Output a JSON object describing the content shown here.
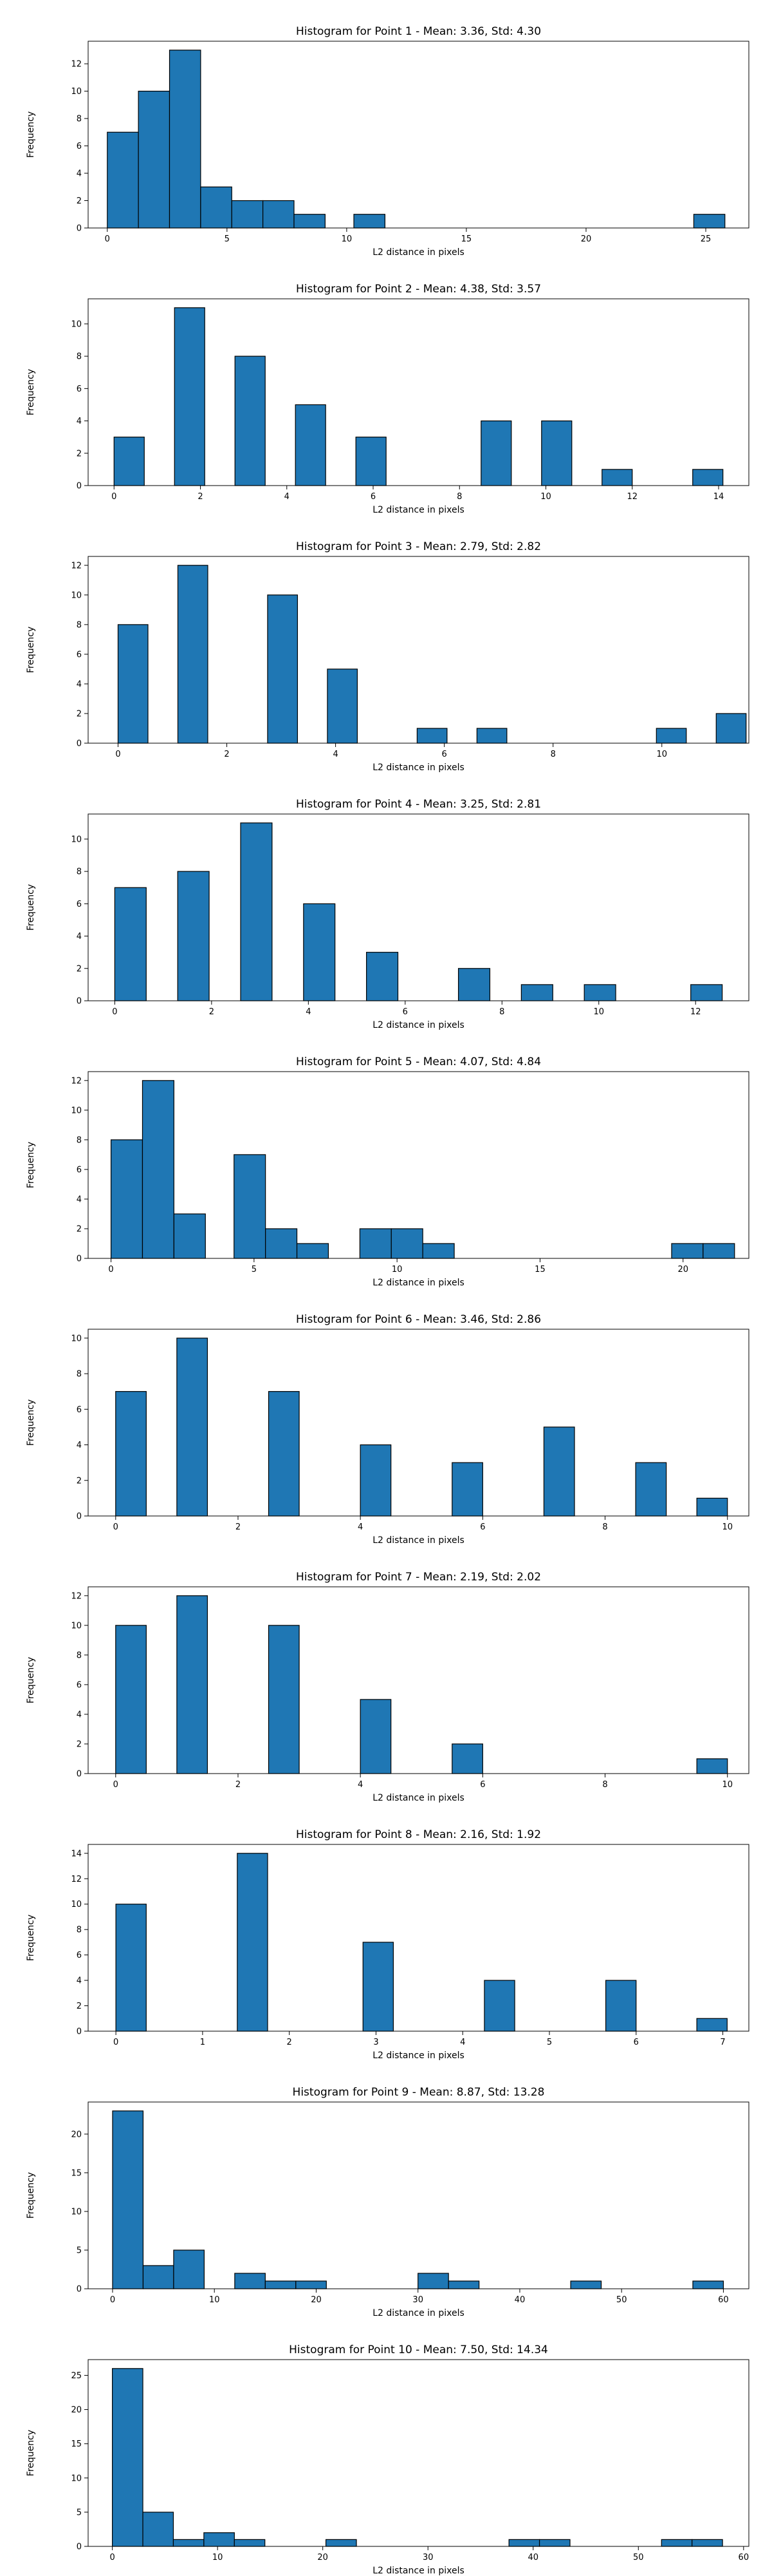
{
  "figure": {
    "bar_color": "#1f77b4",
    "edge_color": "#000000"
  },
  "chart_data": [
    {
      "type": "bar",
      "title": "Histogram for Point 1 - Mean: 3.36, Std: 4.30",
      "xlabel": "L2 distance in pixels",
      "ylabel": "Frequency",
      "xlim": [
        -0.8,
        26.8
      ],
      "ylim": [
        0,
        13.65
      ],
      "xticks": [
        0,
        5,
        10,
        15,
        20,
        25
      ],
      "yticks": [
        0,
        2,
        4,
        6,
        8,
        10,
        12
      ],
      "bins": [
        {
          "x0": 0.0,
          "x1": 1.3,
          "count": 7
        },
        {
          "x0": 1.3,
          "x1": 2.6,
          "count": 10
        },
        {
          "x0": 2.6,
          "x1": 3.9,
          "count": 13
        },
        {
          "x0": 3.9,
          "x1": 5.2,
          "count": 3
        },
        {
          "x0": 5.2,
          "x1": 6.5,
          "count": 2
        },
        {
          "x0": 6.5,
          "x1": 7.8,
          "count": 2
        },
        {
          "x0": 7.8,
          "x1": 9.1,
          "count": 1
        },
        {
          "x0": 10.3,
          "x1": 11.6,
          "count": 1
        },
        {
          "x0": 24.5,
          "x1": 25.8,
          "count": 1
        }
      ]
    },
    {
      "type": "bar",
      "title": "Histogram for Point 2 - Mean: 4.38, Std: 3.57",
      "xlabel": "L2 distance in pixels",
      "ylabel": "Frequency",
      "xlim": [
        -0.6,
        14.7
      ],
      "ylim": [
        0,
        11.55
      ],
      "xticks": [
        0,
        2,
        4,
        6,
        8,
        10,
        12,
        14
      ],
      "yticks": [
        0,
        2,
        4,
        6,
        8,
        10
      ],
      "bins": [
        {
          "x0": 0.0,
          "x1": 0.7,
          "count": 3
        },
        {
          "x0": 1.4,
          "x1": 2.1,
          "count": 11
        },
        {
          "x0": 2.8,
          "x1": 3.5,
          "count": 8
        },
        {
          "x0": 4.2,
          "x1": 4.9,
          "count": 5
        },
        {
          "x0": 5.6,
          "x1": 6.3,
          "count": 3
        },
        {
          "x0": 8.5,
          "x1": 9.2,
          "count": 4
        },
        {
          "x0": 9.9,
          "x1": 10.6,
          "count": 4
        },
        {
          "x0": 11.3,
          "x1": 12.0,
          "count": 1
        },
        {
          "x0": 13.4,
          "x1": 14.1,
          "count": 1
        }
      ]
    },
    {
      "type": "bar",
      "title": "Histogram for Point 3 - Mean: 2.79, Std: 2.82",
      "xlabel": "L2 distance in pixels",
      "ylabel": "Frequency",
      "xlim": [
        -0.55,
        11.6
      ],
      "ylim": [
        0,
        12.6
      ],
      "xticks": [
        0,
        2,
        4,
        6,
        8,
        10
      ],
      "yticks": [
        0,
        2,
        4,
        6,
        8,
        10,
        12
      ],
      "bins": [
        {
          "x0": 0.0,
          "x1": 0.55,
          "count": 8
        },
        {
          "x0": 1.1,
          "x1": 1.65,
          "count": 12
        },
        {
          "x0": 2.75,
          "x1": 3.3,
          "count": 10
        },
        {
          "x0": 3.85,
          "x1": 4.4,
          "count": 5
        },
        {
          "x0": 5.5,
          "x1": 6.05,
          "count": 1
        },
        {
          "x0": 6.6,
          "x1": 7.15,
          "count": 1
        },
        {
          "x0": 9.9,
          "x1": 10.45,
          "count": 1
        },
        {
          "x0": 11.0,
          "x1": 11.55,
          "count": 2
        }
      ]
    },
    {
      "type": "bar",
      "title": "Histogram for Point 4 - Mean: 3.25, Std: 2.81",
      "xlabel": "L2 distance in pixels",
      "ylabel": "Frequency",
      "xlim": [
        -0.55,
        13.1
      ],
      "ylim": [
        0,
        11.55
      ],
      "xticks": [
        0,
        2,
        4,
        6,
        8,
        10,
        12
      ],
      "yticks": [
        0,
        2,
        4,
        6,
        8,
        10
      ],
      "bins": [
        {
          "x0": 0.0,
          "x1": 0.65,
          "count": 7
        },
        {
          "x0": 1.3,
          "x1": 1.95,
          "count": 8
        },
        {
          "x0": 2.6,
          "x1": 3.25,
          "count": 11
        },
        {
          "x0": 3.9,
          "x1": 4.55,
          "count": 6
        },
        {
          "x0": 5.2,
          "x1": 5.85,
          "count": 3
        },
        {
          "x0": 7.1,
          "x1": 7.75,
          "count": 2
        },
        {
          "x0": 8.4,
          "x1": 9.05,
          "count": 1
        },
        {
          "x0": 9.7,
          "x1": 10.35,
          "count": 1
        },
        {
          "x0": 11.9,
          "x1": 12.55,
          "count": 1
        }
      ]
    },
    {
      "type": "bar",
      "title": "Histogram for Point 5 - Mean: 4.07, Std: 4.84",
      "xlabel": "L2 distance in pixels",
      "ylabel": "Frequency",
      "xlim": [
        -0.8,
        22.3
      ],
      "ylim": [
        0,
        12.6
      ],
      "xticks": [
        0,
        5,
        10,
        15,
        20
      ],
      "yticks": [
        0,
        2,
        4,
        6,
        8,
        10,
        12
      ],
      "bins": [
        {
          "x0": 0.0,
          "x1": 1.1,
          "count": 8
        },
        {
          "x0": 1.1,
          "x1": 2.2,
          "count": 12
        },
        {
          "x0": 2.2,
          "x1": 3.3,
          "count": 3
        },
        {
          "x0": 4.3,
          "x1": 5.4,
          "count": 7
        },
        {
          "x0": 5.4,
          "x1": 6.5,
          "count": 2
        },
        {
          "x0": 6.5,
          "x1": 7.6,
          "count": 1
        },
        {
          "x0": 8.7,
          "x1": 9.8,
          "count": 2
        },
        {
          "x0": 9.8,
          "x1": 10.9,
          "count": 2
        },
        {
          "x0": 10.9,
          "x1": 12.0,
          "count": 1
        },
        {
          "x0": 19.6,
          "x1": 20.7,
          "count": 1
        },
        {
          "x0": 20.7,
          "x1": 21.8,
          "count": 1
        }
      ]
    },
    {
      "type": "bar",
      "title": "Histogram for Point 6 - Mean: 3.46, Std: 2.86",
      "xlabel": "L2 distance in pixels",
      "ylabel": "Frequency",
      "xlim": [
        -0.45,
        10.35
      ],
      "ylim": [
        0,
        10.5
      ],
      "xticks": [
        0,
        2,
        4,
        6,
        8,
        10
      ],
      "yticks": [
        0,
        2,
        4,
        6,
        8,
        10
      ],
      "bins": [
        {
          "x0": 0.0,
          "x1": 0.5,
          "count": 7
        },
        {
          "x0": 1.0,
          "x1": 1.5,
          "count": 10
        },
        {
          "x0": 2.5,
          "x1": 3.0,
          "count": 7
        },
        {
          "x0": 4.0,
          "x1": 4.5,
          "count": 4
        },
        {
          "x0": 5.5,
          "x1": 6.0,
          "count": 3
        },
        {
          "x0": 7.0,
          "x1": 7.5,
          "count": 5
        },
        {
          "x0": 8.5,
          "x1": 9.0,
          "count": 3
        },
        {
          "x0": 9.5,
          "x1": 10.0,
          "count": 1
        }
      ]
    },
    {
      "type": "bar",
      "title": "Histogram for Point 7 - Mean: 2.19, Std: 2.02",
      "xlabel": "L2 distance in pixels",
      "ylabel": "Frequency",
      "xlim": [
        -0.45,
        10.35
      ],
      "ylim": [
        0,
        12.6
      ],
      "xticks": [
        0,
        2,
        4,
        6,
        8,
        10
      ],
      "yticks": [
        0,
        2,
        4,
        6,
        8,
        10,
        12
      ],
      "bins": [
        {
          "x0": 0.0,
          "x1": 0.5,
          "count": 10
        },
        {
          "x0": 1.0,
          "x1": 1.5,
          "count": 12
        },
        {
          "x0": 2.5,
          "x1": 3.0,
          "count": 10
        },
        {
          "x0": 4.0,
          "x1": 4.5,
          "count": 5
        },
        {
          "x0": 5.5,
          "x1": 6.0,
          "count": 2
        },
        {
          "x0": 9.5,
          "x1": 10.0,
          "count": 1
        }
      ]
    },
    {
      "type": "bar",
      "title": "Histogram for Point 8 - Mean: 2.16, Std: 1.92",
      "xlabel": "L2 distance in pixels",
      "ylabel": "Frequency",
      "xlim": [
        -0.32,
        7.3
      ],
      "ylim": [
        0,
        14.7
      ],
      "xticks": [
        0,
        1,
        2,
        3,
        4,
        5,
        6,
        7
      ],
      "yticks": [
        0,
        2,
        4,
        6,
        8,
        10,
        12,
        14
      ],
      "bins": [
        {
          "x0": 0.0,
          "x1": 0.35,
          "count": 10
        },
        {
          "x0": 1.4,
          "x1": 1.75,
          "count": 14
        },
        {
          "x0": 2.85,
          "x1": 3.2,
          "count": 7
        },
        {
          "x0": 4.25,
          "x1": 4.6,
          "count": 4
        },
        {
          "x0": 5.65,
          "x1": 6.0,
          "count": 4
        },
        {
          "x0": 6.7,
          "x1": 7.05,
          "count": 1
        }
      ]
    },
    {
      "type": "bar",
      "title": "Histogram for Point 9 - Mean: 8.87, Std: 13.28",
      "xlabel": "L2 distance in pixels",
      "ylabel": "Frequency",
      "xlim": [
        -2.4,
        62.5
      ],
      "ylim": [
        0,
        24.15
      ],
      "xticks": [
        0,
        10,
        20,
        30,
        40,
        50,
        60
      ],
      "yticks": [
        0,
        5,
        10,
        15,
        20
      ],
      "bins": [
        {
          "x0": 0.0,
          "x1": 3.0,
          "count": 23
        },
        {
          "x0": 3.0,
          "x1": 6.0,
          "count": 3
        },
        {
          "x0": 6.0,
          "x1": 9.0,
          "count": 5
        },
        {
          "x0": 12.0,
          "x1": 15.0,
          "count": 2
        },
        {
          "x0": 15.0,
          "x1": 18.0,
          "count": 1
        },
        {
          "x0": 18.0,
          "x1": 21.0,
          "count": 1
        },
        {
          "x0": 30.0,
          "x1": 33.0,
          "count": 2
        },
        {
          "x0": 33.0,
          "x1": 36.0,
          "count": 1
        },
        {
          "x0": 45.0,
          "x1": 48.0,
          "count": 1
        },
        {
          "x0": 57.0,
          "x1": 60.0,
          "count": 1
        }
      ]
    },
    {
      "type": "bar",
      "title": "Histogram for Point 10 - Mean: 7.50, Std: 14.34",
      "xlabel": "L2 distance in pixels",
      "ylabel": "Frequency",
      "xlim": [
        -2.3,
        60.5
      ],
      "ylim": [
        0,
        27.3
      ],
      "xticks": [
        0,
        10,
        20,
        30,
        40,
        50,
        60
      ],
      "yticks": [
        0,
        5,
        10,
        15,
        20,
        25
      ],
      "bins": [
        {
          "x0": 0.0,
          "x1": 2.9,
          "count": 26
        },
        {
          "x0": 2.9,
          "x1": 5.8,
          "count": 5
        },
        {
          "x0": 5.8,
          "x1": 8.7,
          "count": 1
        },
        {
          "x0": 8.7,
          "x1": 11.6,
          "count": 2
        },
        {
          "x0": 11.6,
          "x1": 14.5,
          "count": 1
        },
        {
          "x0": 20.3,
          "x1": 23.2,
          "count": 1
        },
        {
          "x0": 37.7,
          "x1": 40.6,
          "count": 1
        },
        {
          "x0": 40.6,
          "x1": 43.5,
          "count": 1
        },
        {
          "x0": 52.2,
          "x1": 55.1,
          "count": 1
        },
        {
          "x0": 55.1,
          "x1": 58.0,
          "count": 1
        }
      ]
    }
  ]
}
